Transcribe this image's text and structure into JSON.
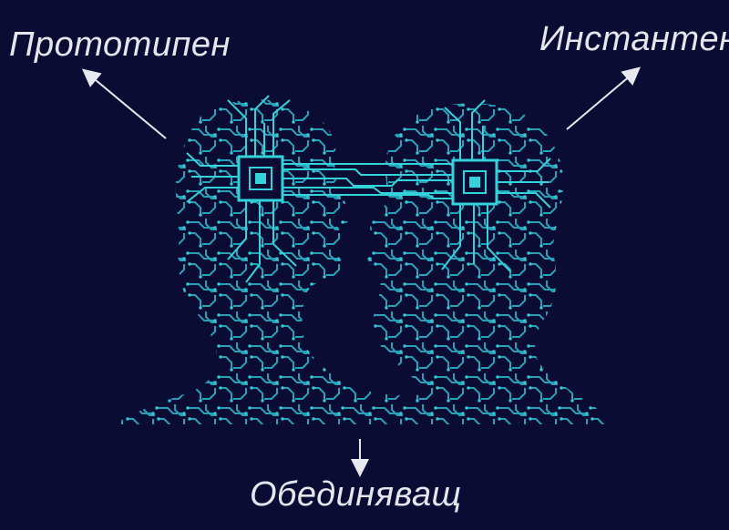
{
  "labels": {
    "top_left": "Прототипен",
    "top_right": "Инстантен",
    "bottom": "Обединяващ"
  },
  "colors": {
    "background": "#0b0c33",
    "circuit": "#2fd6d8",
    "circuit_dim": "#1e8fa3",
    "arrow": "#e8e8f0",
    "text": "#e6e6ef"
  },
  "icons": {
    "left_head": "circuit-head-icon",
    "right_head": "circuit-head-icon",
    "chip": "microchip-icon"
  }
}
